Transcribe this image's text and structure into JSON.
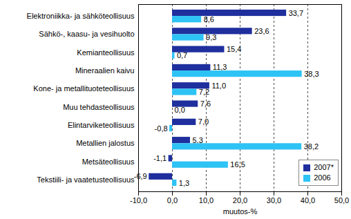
{
  "chart_data": {
    "type": "bar",
    "orientation": "horizontal",
    "categories": [
      "Elektroniikka- ja sähköteollisuus",
      "Sähkö-, kaasu- ja vesihuolto",
      "Kemianteollisuus",
      "Mineraalien kaivu",
      "Kone- ja metallituoteteollisuus",
      "Muu tehdasteollisuus",
      "Elintarviketeollisuus",
      "Metallien jalostus",
      "Metsäteollisuus",
      "Tekstiili- ja vaatetusteollisuus"
    ],
    "series": [
      {
        "name": "2007*",
        "color": "#1f2f9e",
        "values": [
          33.7,
          23.6,
          15.4,
          11.3,
          11.0,
          7.6,
          7.0,
          5.3,
          -1.1,
          -6.9
        ],
        "value_labels": [
          "33,7",
          "23,6",
          "15,4",
          "11,3",
          "11,0",
          "7,6",
          "7,0",
          "5,3",
          "-1,1",
          "-6,9"
        ]
      },
      {
        "name": "2006",
        "color": "#2ec3f5",
        "values": [
          8.6,
          9.3,
          0.7,
          38.3,
          7.2,
          0.0,
          -0.8,
          38.2,
          16.5,
          1.3
        ],
        "value_labels": [
          "8,6",
          "9,3",
          "0,7",
          "38,3",
          "7,2",
          "0,0",
          "-0,8",
          "38,2",
          "16,5",
          "1,3"
        ]
      }
    ],
    "xlabel": "muutos-%",
    "xlim": [
      -10,
      50
    ],
    "xticks": [
      {
        "value": -10,
        "label": "-10,0"
      },
      {
        "value": 0,
        "label": "0,0"
      },
      {
        "value": 10,
        "label": "10,0"
      },
      {
        "value": 20,
        "label": "20,0"
      },
      {
        "value": 30,
        "label": "30,0"
      },
      {
        "value": 40,
        "label": "40,0"
      },
      {
        "value": 50,
        "label": "50,0"
      }
    ],
    "grid": true,
    "legend": "lower right",
    "data_labels": true
  }
}
